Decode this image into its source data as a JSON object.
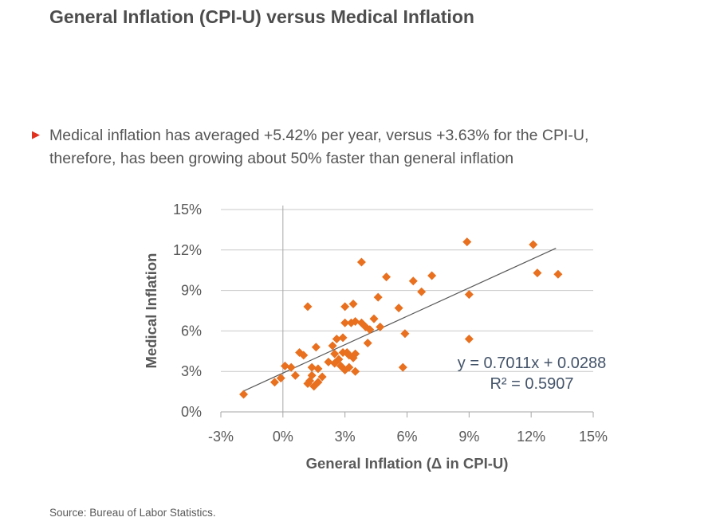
{
  "page": {
    "title": "General Inflation (CPI-U) versus Medical Inflation",
    "bullet": {
      "marker": "▶",
      "lines": [
        "Medical inflation has averaged +5.42% per year, versus +3.63% for the CPI-U,",
        "therefore, has been growing about 50% faster than general inflation"
      ]
    },
    "source": "Source: Bureau of Labor Statistics."
  },
  "colors": {
    "title_text": "#4d4d4d",
    "body_text": "#565656",
    "bullet_marker": "#e0301e",
    "point_fill": "#e8701e",
    "trendline": "#595959",
    "gridline": "#c9c9c9",
    "axis_line": "#a6a6a6",
    "tick_label": "#595959",
    "axis_title": "#595959",
    "equation_text": "#44546a",
    "source_text": "#595959"
  },
  "chart_data": {
    "type": "scatter",
    "title": "",
    "xlabel": "General Inflation (Δ in CPI-U)",
    "ylabel": "Medical Inflation",
    "xlim": [
      -3,
      15
    ],
    "ylim": [
      0,
      15
    ],
    "x_ticks": [
      "-3%",
      "0%",
      "3%",
      "6%",
      "9%",
      "12%",
      "15%"
    ],
    "y_ticks": [
      "0%",
      "3%",
      "6%",
      "9%",
      "12%",
      "15%"
    ],
    "grid": "horizontal",
    "legend": "none",
    "points": [
      [
        -1.9,
        1.3
      ],
      [
        -0.4,
        2.2
      ],
      [
        -0.1,
        2.5
      ],
      [
        0.1,
        3.4
      ],
      [
        0.4,
        3.3
      ],
      [
        0.6,
        2.7
      ],
      [
        0.8,
        4.4
      ],
      [
        1.0,
        4.2
      ],
      [
        1.2,
        2.1
      ],
      [
        1.3,
        2.3
      ],
      [
        1.4,
        2.7
      ],
      [
        1.4,
        3.3
      ],
      [
        1.5,
        1.9
      ],
      [
        1.6,
        4.8
      ],
      [
        1.7,
        2.2
      ],
      [
        1.7,
        3.2
      ],
      [
        1.9,
        2.6
      ],
      [
        1.2,
        7.8
      ],
      [
        2.2,
        3.7
      ],
      [
        2.4,
        4.9
      ],
      [
        2.5,
        3.6
      ],
      [
        2.5,
        4.3
      ],
      [
        2.6,
        5.4
      ],
      [
        2.7,
        3.9
      ],
      [
        2.8,
        3.4
      ],
      [
        2.9,
        4.4
      ],
      [
        2.9,
        5.5
      ],
      [
        3.0,
        3.1
      ],
      [
        3.0,
        6.6
      ],
      [
        3.0,
        7.8
      ],
      [
        3.1,
        4.4
      ],
      [
        3.2,
        3.3
      ],
      [
        3.2,
        4.2
      ],
      [
        3.3,
        6.6
      ],
      [
        3.4,
        4.0
      ],
      [
        3.4,
        8.0
      ],
      [
        3.5,
        3.0
      ],
      [
        3.5,
        4.3
      ],
      [
        3.5,
        6.7
      ],
      [
        3.8,
        6.6
      ],
      [
        3.8,
        11.1
      ],
      [
        4.0,
        6.3
      ],
      [
        4.1,
        5.1
      ],
      [
        4.2,
        6.1
      ],
      [
        4.4,
        6.9
      ],
      [
        4.6,
        8.5
      ],
      [
        4.7,
        6.3
      ],
      [
        5.0,
        10.0
      ],
      [
        5.6,
        7.7
      ],
      [
        5.8,
        3.3
      ],
      [
        5.9,
        5.8
      ],
      [
        6.3,
        9.7
      ],
      [
        6.7,
        8.9
      ],
      [
        7.2,
        10.1
      ],
      [
        8.9,
        12.6
      ],
      [
        9.0,
        5.4
      ],
      [
        9.0,
        8.7
      ],
      [
        12.1,
        12.4
      ],
      [
        12.3,
        10.3
      ],
      [
        13.3,
        10.2
      ]
    ],
    "trendline": {
      "slope": 0.7011,
      "intercept_pct": 2.88,
      "x_start": -1.9,
      "x_end": 13.2,
      "equation_label": "y = 0.7011x + 0.0288",
      "r2_label": "R² = 0.5907"
    }
  }
}
